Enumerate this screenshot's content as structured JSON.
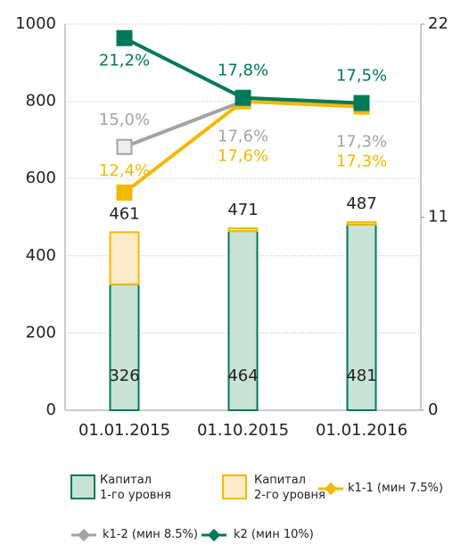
{
  "chart_data": {
    "type": "bar",
    "stacked": true,
    "categories": [
      "01.01.2015",
      "01.10.2015",
      "01.01.2016"
    ],
    "ylim": [
      0,
      1000
    ],
    "yticks": [
      0,
      200,
      400,
      600,
      800,
      1000
    ],
    "y2lim": [
      0,
      22
    ],
    "y2ticks": [
      0,
      11,
      22
    ],
    "grid": true,
    "legend": "bottom",
    "totals": [
      461,
      471,
      487
    ],
    "series": [
      {
        "name": "Капитал\n1-го уровня",
        "type": "bar",
        "color": "#00795a",
        "fill": "#c9e3d6",
        "values": [
          326,
          464,
          481
        ]
      },
      {
        "name": "Капитал\n2-го уровня",
        "type": "bar",
        "color": "#f5b800",
        "fill": "#fdebc8",
        "values": [
          135,
          7,
          6
        ]
      },
      {
        "name": "k1-1 (мин 7.5%)",
        "type": "line",
        "axis": "y2",
        "color": "#f5b800",
        "marker": "square",
        "values": [
          12.4,
          17.6,
          17.3
        ],
        "value_labels": [
          "12,4%",
          "17,6%",
          "17,3%"
        ]
      },
      {
        "name": "k1-2 (мин 8.5%)",
        "type": "line",
        "axis": "y2",
        "color": "#a3a3a3",
        "marker": "square",
        "values": [
          15.0,
          17.6,
          17.3
        ],
        "value_labels": [
          "15,0%",
          "17,6%",
          "17,3%"
        ]
      },
      {
        "name": "k2 (мин 10%)",
        "type": "line",
        "axis": "y2",
        "color": "#00795a",
        "marker": "square",
        "values": [
          21.2,
          17.8,
          17.5
        ],
        "value_labels": [
          "21,2%",
          "17,8%",
          "17,5%"
        ]
      }
    ]
  }
}
